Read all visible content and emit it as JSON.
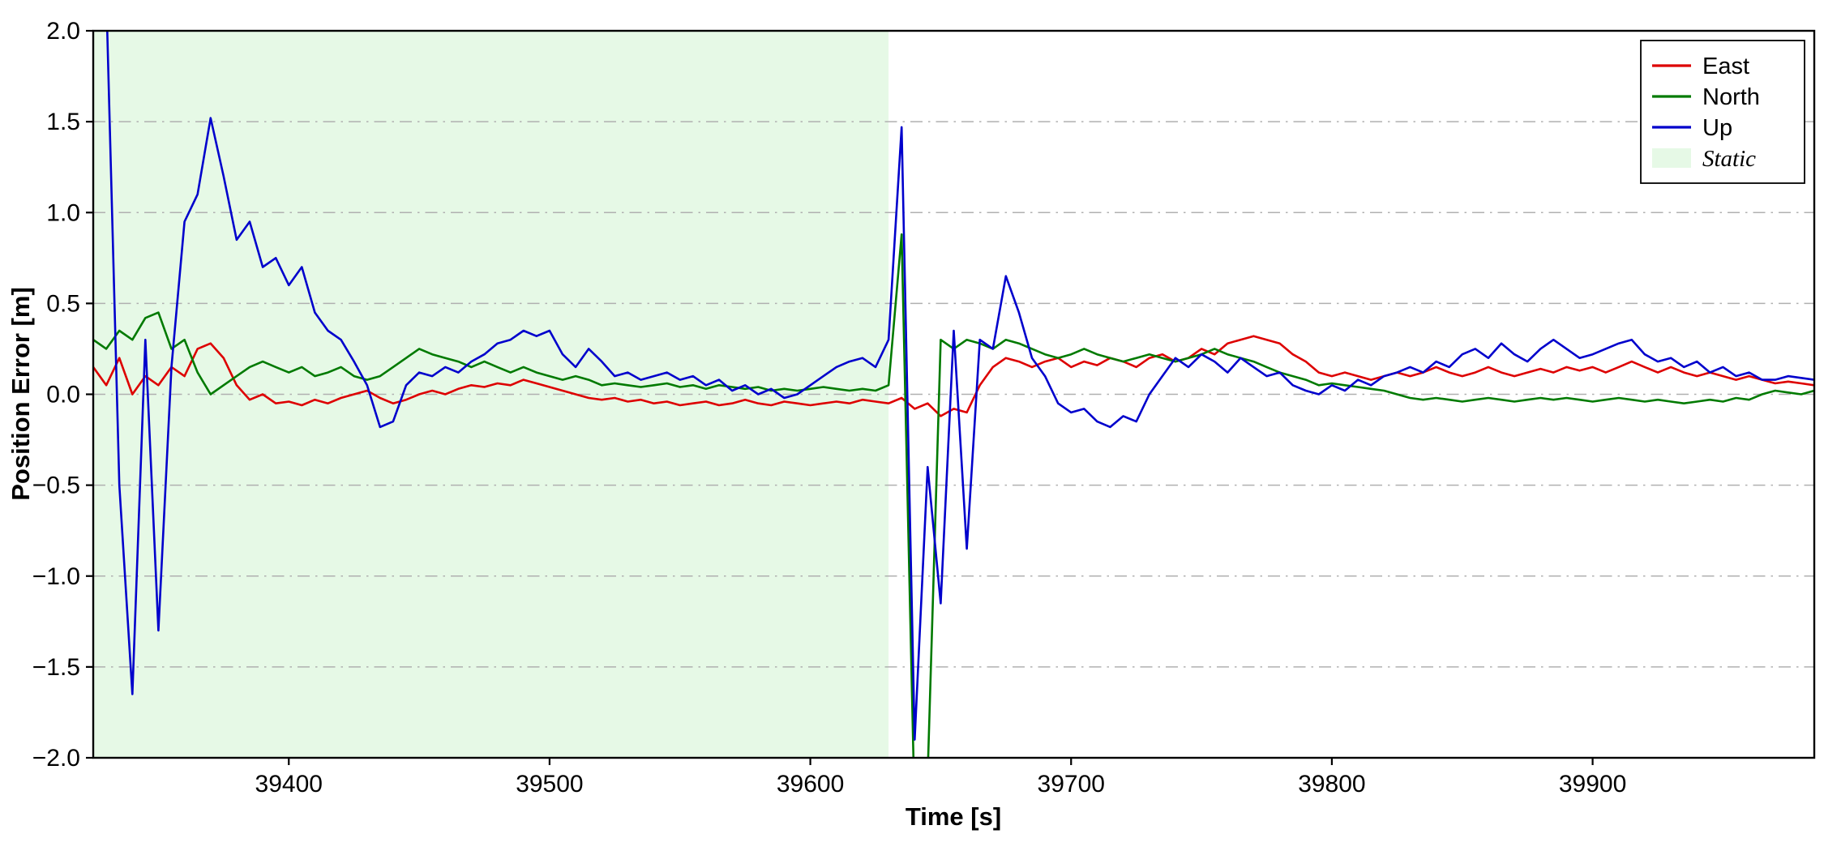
{
  "figure": {
    "background": "#ffffff",
    "plot_border_color": "#000000",
    "grid_color": "#b0b0b0",
    "grid_style": "dash-dot horizontal"
  },
  "chart_data": {
    "type": "line",
    "title": "",
    "xlabel": "Time [s]",
    "ylabel": "Position Error [m]",
    "xlim": [
      39325,
      39985
    ],
    "ylim": [
      -2.0,
      2.0
    ],
    "x_ticks": [
      39400,
      39500,
      39600,
      39700,
      39800,
      39900
    ],
    "y_ticks": [
      -2.0,
      -1.5,
      -1.0,
      -0.5,
      0.0,
      0.5,
      1.0,
      1.5,
      2.0
    ],
    "grid": "horizontal dash-dot",
    "legend_position": "upper right",
    "static_region": {
      "label": "Static",
      "x_start": 39325,
      "x_end": 39630,
      "color": "#e6f9e6"
    },
    "x_start": 39325,
    "x_step": 5,
    "series": [
      {
        "name": "East",
        "color": "#dd0000",
        "values": [
          0.15,
          0.05,
          0.2,
          0.0,
          0.1,
          0.05,
          0.15,
          0.1,
          0.25,
          0.28,
          0.2,
          0.05,
          -0.03,
          0.0,
          -0.05,
          -0.04,
          -0.06,
          -0.03,
          -0.05,
          -0.02,
          0.0,
          0.02,
          -0.02,
          -0.05,
          -0.03,
          0.0,
          0.02,
          0.0,
          0.03,
          0.05,
          0.04,
          0.06,
          0.05,
          0.08,
          0.06,
          0.04,
          0.02,
          0.0,
          -0.02,
          -0.03,
          -0.02,
          -0.04,
          -0.03,
          -0.05,
          -0.04,
          -0.06,
          -0.05,
          -0.04,
          -0.06,
          -0.05,
          -0.03,
          -0.05,
          -0.06,
          -0.04,
          -0.05,
          -0.06,
          -0.05,
          -0.04,
          -0.05,
          -0.03,
          -0.04,
          -0.05,
          -0.02,
          -0.08,
          -0.05,
          -0.12,
          -0.08,
          -0.1,
          0.05,
          0.15,
          0.2,
          0.18,
          0.15,
          0.18,
          0.2,
          0.15,
          0.18,
          0.16,
          0.2,
          0.18,
          0.15,
          0.2,
          0.22,
          0.18,
          0.2,
          0.25,
          0.22,
          0.28,
          0.3,
          0.32,
          0.3,
          0.28,
          0.22,
          0.18,
          0.12,
          0.1,
          0.12,
          0.1,
          0.08,
          0.1,
          0.12,
          0.1,
          0.12,
          0.15,
          0.12,
          0.1,
          0.12,
          0.15,
          0.12,
          0.1,
          0.12,
          0.14,
          0.12,
          0.15,
          0.13,
          0.15,
          0.12,
          0.15,
          0.18,
          0.15,
          0.12,
          0.15,
          0.12,
          0.1,
          0.12,
          0.1,
          0.08,
          0.1,
          0.08,
          0.06,
          0.07,
          0.06,
          0.05
        ]
      },
      {
        "name": "North",
        "color": "#007a00",
        "values": [
          0.3,
          0.25,
          0.35,
          0.3,
          0.42,
          0.45,
          0.25,
          0.3,
          0.12,
          0.0,
          0.05,
          0.1,
          0.15,
          0.18,
          0.15,
          0.12,
          0.15,
          0.1,
          0.12,
          0.15,
          0.1,
          0.08,
          0.1,
          0.15,
          0.2,
          0.25,
          0.22,
          0.2,
          0.18,
          0.15,
          0.18,
          0.15,
          0.12,
          0.15,
          0.12,
          0.1,
          0.08,
          0.1,
          0.08,
          0.05,
          0.06,
          0.05,
          0.04,
          0.05,
          0.06,
          0.04,
          0.05,
          0.03,
          0.05,
          0.04,
          0.03,
          0.04,
          0.02,
          0.03,
          0.02,
          0.03,
          0.04,
          0.03,
          0.02,
          0.03,
          0.02,
          0.05,
          0.88,
          -2.3,
          -2.1,
          0.3,
          0.25,
          0.3,
          0.28,
          0.25,
          0.3,
          0.28,
          0.25,
          0.22,
          0.2,
          0.22,
          0.25,
          0.22,
          0.2,
          0.18,
          0.2,
          0.22,
          0.2,
          0.18,
          0.2,
          0.22,
          0.25,
          0.22,
          0.2,
          0.18,
          0.15,
          0.12,
          0.1,
          0.08,
          0.05,
          0.06,
          0.05,
          0.04,
          0.03,
          0.02,
          0.0,
          -0.02,
          -0.03,
          -0.02,
          -0.03,
          -0.04,
          -0.03,
          -0.02,
          -0.03,
          -0.04,
          -0.03,
          -0.02,
          -0.03,
          -0.02,
          -0.03,
          -0.04,
          -0.03,
          -0.02,
          -0.03,
          -0.04,
          -0.03,
          -0.04,
          -0.05,
          -0.04,
          -0.03,
          -0.04,
          -0.02,
          -0.03,
          0.0,
          0.02,
          0.01,
          0.0,
          0.02
        ]
      },
      {
        "name": "Up",
        "color": "#0000cc",
        "values": [
          2.6,
          2.2,
          -0.5,
          -1.65,
          0.3,
          -1.3,
          0.15,
          0.95,
          1.1,
          1.52,
          1.2,
          0.85,
          0.95,
          0.7,
          0.75,
          0.6,
          0.7,
          0.45,
          0.35,
          0.3,
          0.18,
          0.05,
          -0.18,
          -0.15,
          0.05,
          0.12,
          0.1,
          0.15,
          0.12,
          0.18,
          0.22,
          0.28,
          0.3,
          0.35,
          0.32,
          0.35,
          0.22,
          0.15,
          0.25,
          0.18,
          0.1,
          0.12,
          0.08,
          0.1,
          0.12,
          0.08,
          0.1,
          0.05,
          0.08,
          0.02,
          0.05,
          0.0,
          0.03,
          -0.02,
          0.0,
          0.05,
          0.1,
          0.15,
          0.18,
          0.2,
          0.15,
          0.3,
          1.47,
          -1.9,
          -0.4,
          -1.15,
          0.35,
          -0.85,
          0.3,
          0.25,
          0.65,
          0.45,
          0.2,
          0.1,
          -0.05,
          -0.1,
          -0.08,
          -0.15,
          -0.18,
          -0.12,
          -0.15,
          0.0,
          0.1,
          0.2,
          0.15,
          0.22,
          0.18,
          0.12,
          0.2,
          0.15,
          0.1,
          0.12,
          0.05,
          0.02,
          0.0,
          0.05,
          0.02,
          0.08,
          0.05,
          0.1,
          0.12,
          0.15,
          0.12,
          0.18,
          0.15,
          0.22,
          0.25,
          0.2,
          0.28,
          0.22,
          0.18,
          0.25,
          0.3,
          0.25,
          0.2,
          0.22,
          0.25,
          0.28,
          0.3,
          0.22,
          0.18,
          0.2,
          0.15,
          0.18,
          0.12,
          0.15,
          0.1,
          0.12,
          0.08,
          0.08,
          0.1,
          0.09,
          0.08
        ]
      }
    ],
    "legend": [
      {
        "label": "East",
        "type": "line",
        "color": "#dd0000"
      },
      {
        "label": "North",
        "type": "line",
        "color": "#007a00"
      },
      {
        "label": "Up",
        "type": "line",
        "color": "#0000cc"
      },
      {
        "label": "Static",
        "type": "patch",
        "color": "#e6f9e6",
        "italic": true
      }
    ]
  }
}
